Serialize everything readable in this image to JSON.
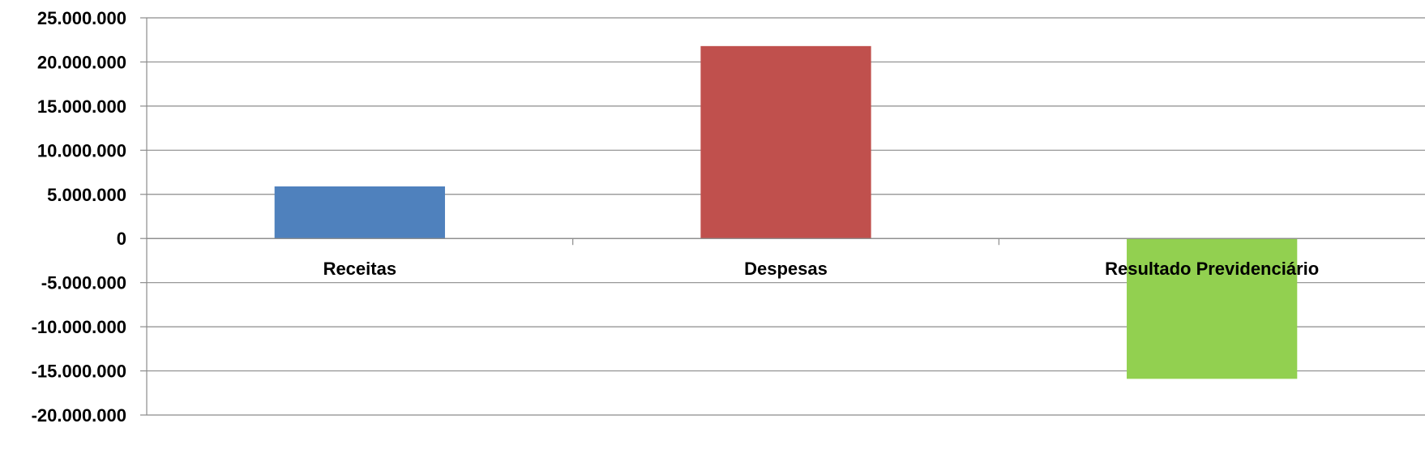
{
  "chart_data": {
    "type": "bar",
    "categories": [
      "Receitas",
      "Despesas",
      "Resultado Previdenciário"
    ],
    "values": [
      5900000,
      21800000,
      -15900000
    ],
    "colors": [
      "#4f81bd",
      "#c0504d",
      "#92d050"
    ],
    "ylim": [
      -20000000,
      25000000
    ],
    "yticks": [
      25000000,
      20000000,
      15000000,
      10000000,
      5000000,
      0,
      -5000000,
      -10000000,
      -15000000,
      -20000000
    ],
    "ytick_labels": [
      "25.000.000",
      "20.000.000",
      "15.000.000",
      "10.000.000",
      "5.000.000",
      "0",
      "-5.000.000",
      "-10.000.000",
      "-15.000.000",
      "-20.000.000"
    ],
    "grid": true,
    "legend": "none",
    "title": "",
    "xlabel": "",
    "ylabel": ""
  }
}
